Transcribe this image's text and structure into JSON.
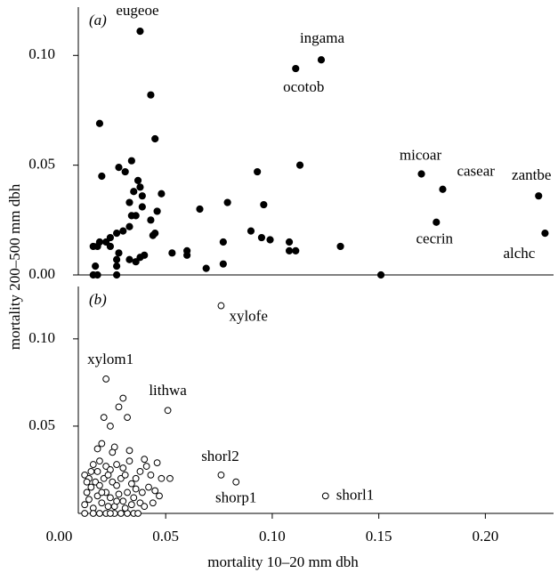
{
  "chart_data": [
    {
      "type": "scatter",
      "panel_label": "(a)",
      "y_label": "mortality 200–500 mm dbh",
      "color": "#000000",
      "filled": true,
      "xlim": [
        0.009,
        0.232
      ],
      "ylim": [
        0,
        0.122
      ],
      "yticks": [
        {
          "value": 0,
          "label": "0.00"
        },
        {
          "value": 0.05,
          "label": "0.05"
        },
        {
          "value": 0.1,
          "label": "0.10"
        }
      ],
      "x": [
        0.038,
        0.123,
        0.111,
        0.17,
        0.18,
        0.177,
        0.225,
        0.228,
        0.043,
        0.045,
        0.019,
        0.02,
        0.034,
        0.028,
        0.031,
        0.037,
        0.038,
        0.039,
        0.039,
        0.035,
        0.048,
        0.033,
        0.046,
        0.036,
        0.034,
        0.043,
        0.033,
        0.03,
        0.045,
        0.044,
        0.027,
        0.024,
        0.019,
        0.022,
        0.024,
        0.016,
        0.018,
        0.028,
        0.027,
        0.038,
        0.04,
        0.033,
        0.036,
        0.017,
        0.027,
        0.016,
        0.018,
        0.027,
        0.053,
        0.06,
        0.06,
        0.066,
        0.069,
        0.079,
        0.077,
        0.077,
        0.09,
        0.093,
        0.096,
        0.095,
        0.099,
        0.108,
        0.108,
        0.111,
        0.113,
        0.132,
        0.151
      ],
      "values": [
        0.111,
        0.098,
        0.094,
        0.046,
        0.039,
        0.024,
        0.036,
        0.019,
        0.082,
        0.062,
        0.069,
        0.045,
        0.052,
        0.049,
        0.047,
        0.043,
        0.04,
        0.036,
        0.031,
        0.038,
        0.037,
        0.033,
        0.029,
        0.027,
        0.027,
        0.025,
        0.022,
        0.02,
        0.019,
        0.018,
        0.019,
        0.017,
        0.015,
        0.015,
        0.013,
        0.013,
        0.013,
        0.01,
        0.007,
        0.008,
        0.009,
        0.007,
        0.006,
        0.004,
        0.004,
        0,
        0,
        0,
        0.01,
        0.009,
        0.011,
        0.03,
        0.003,
        0.033,
        0.005,
        0.015,
        0.02,
        0.047,
        0.032,
        0.017,
        0.016,
        0.015,
        0.011,
        0.011,
        0.05,
        0.013,
        0
      ],
      "labels": [
        "eugeoe",
        "ingama",
        "ocotob",
        "micoar",
        "casear",
        "cecrin",
        "zantbe",
        "alchc",
        null,
        null,
        null,
        null,
        null,
        null,
        null,
        null,
        null,
        null,
        null,
        null,
        null,
        null,
        null,
        null,
        null,
        null,
        null,
        null,
        null,
        null,
        null,
        null,
        null,
        null,
        null,
        null,
        null,
        null,
        null,
        null,
        null,
        null,
        null,
        null,
        null,
        null,
        null,
        null,
        null,
        null,
        null,
        null,
        null,
        null,
        null,
        null,
        null,
        null,
        null,
        null,
        null,
        null,
        null,
        null,
        null,
        null,
        null
      ]
    },
    {
      "type": "scatter",
      "panel_label": "(b)",
      "x_label": "mortality 10–20 mm dbh",
      "color": "#000000",
      "filled": false,
      "xlim": [
        0.009,
        0.232
      ],
      "ylim": [
        0,
        0.13
      ],
      "xticks": [
        {
          "value": 0,
          "label": "0.00"
        },
        {
          "value": 0.05,
          "label": "0.05"
        },
        {
          "value": 0.1,
          "label": "0.10"
        },
        {
          "value": 0.15,
          "label": "0.15"
        },
        {
          "value": 0.2,
          "label": "0.20"
        }
      ],
      "yticks": [
        {
          "value": 0.05,
          "label": "0.05"
        },
        {
          "value": 0.1,
          "label": "0.10"
        }
      ],
      "x": [
        0.076,
        0.022,
        0.051,
        0.076,
        0.083,
        0.125,
        0.03,
        0.028,
        0.032,
        0.021,
        0.024,
        0.02,
        0.018,
        0.026,
        0.025,
        0.033,
        0.04,
        0.046,
        0.041,
        0.038,
        0.043,
        0.048,
        0.052,
        0.036,
        0.012,
        0.014,
        0.016,
        0.019,
        0.022,
        0.024,
        0.027,
        0.03,
        0.033,
        0.013,
        0.015,
        0.017,
        0.019,
        0.021,
        0.023,
        0.025,
        0.027,
        0.029,
        0.031,
        0.034,
        0.036,
        0.039,
        0.042,
        0.045,
        0.047,
        0.038,
        0.035,
        0.012,
        0.014,
        0.016,
        0.018,
        0.02,
        0.022,
        0.024,
        0.026,
        0.028,
        0.03,
        0.032,
        0.012,
        0.016,
        0.019,
        0.022,
        0.026,
        0.029,
        0.032,
        0.035,
        0.037,
        0.024,
        0.013,
        0.015,
        0.018,
        0.02,
        0.023,
        0.027,
        0.031,
        0.04,
        0.044,
        0.034
      ],
      "values": [
        0.119,
        0.077,
        0.059,
        0.022,
        0.018,
        0.01,
        0.066,
        0.061,
        0.055,
        0.055,
        0.05,
        0.04,
        0.037,
        0.038,
        0.035,
        0.036,
        0.031,
        0.029,
        0.027,
        0.024,
        0.022,
        0.02,
        0.02,
        0.02,
        0.022,
        0.02,
        0.028,
        0.03,
        0.027,
        0.025,
        0.028,
        0.026,
        0.03,
        0.012,
        0.015,
        0.018,
        0.016,
        0.02,
        0.022,
        0.018,
        0.016,
        0.02,
        0.022,
        0.017,
        0.014,
        0.012,
        0.015,
        0.013,
        0.01,
        0.006,
        0.009,
        0.005,
        0.008,
        0.003,
        0.01,
        0.006,
        0.012,
        0.009,
        0.004,
        0.011,
        0.007,
        0.012,
        0,
        0,
        0,
        0,
        0,
        0,
        0,
        0,
        0,
        0,
        0.018,
        0.024,
        0.024,
        0.012,
        0.004,
        0.007,
        0.003,
        0.004,
        0.006,
        0.005
      ],
      "labels": [
        "xylofe",
        "xylom1",
        "lithwa",
        "shorl2",
        "shorp1",
        "shorl1",
        null,
        null,
        null,
        null,
        null,
        null,
        null,
        null,
        null,
        null,
        null,
        null,
        null,
        null,
        null,
        null,
        null,
        null,
        null,
        null,
        null,
        null,
        null,
        null,
        null,
        null,
        null,
        null,
        null,
        null,
        null,
        null,
        null,
        null,
        null,
        null,
        null,
        null,
        null,
        null,
        null,
        null,
        null,
        null,
        null,
        null,
        null,
        null,
        null,
        null,
        null,
        null,
        null,
        null,
        null,
        null,
        null,
        null,
        null,
        null,
        null,
        null,
        null,
        null,
        null,
        null,
        null,
        null,
        null,
        null,
        null,
        null,
        null,
        null,
        null,
        null
      ]
    }
  ]
}
